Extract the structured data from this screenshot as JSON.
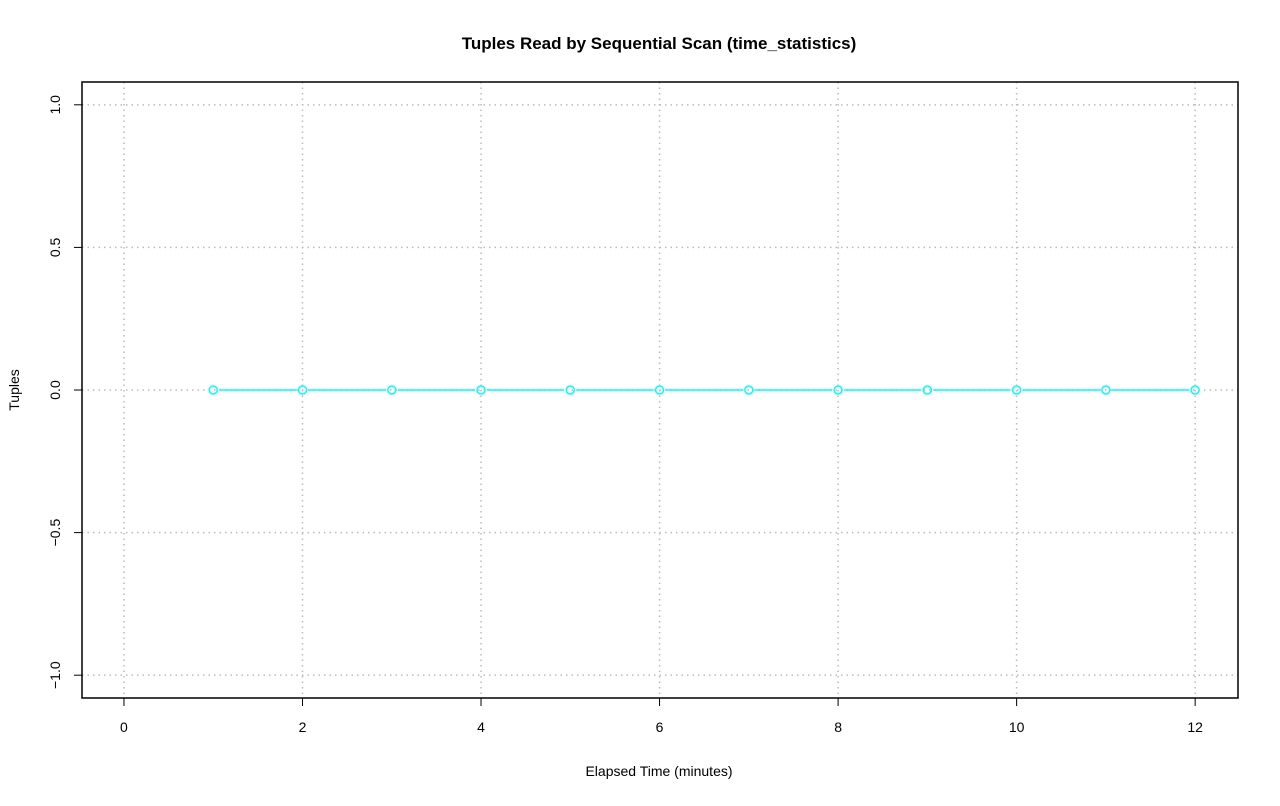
{
  "chart_data": {
    "type": "line",
    "title": "Tuples Read by Sequential Scan (time_statistics)",
    "xlabel": "Elapsed Time (minutes)",
    "ylabel": "Tuples",
    "xlim": [
      -0.47,
      12.48
    ],
    "ylim": [
      -1.08,
      1.08
    ],
    "xticks": [
      0,
      2,
      4,
      6,
      8,
      10,
      12
    ],
    "xtick_labels": [
      "0",
      "2",
      "4",
      "6",
      "8",
      "10",
      "12"
    ],
    "yticks": [
      -1.0,
      -0.5,
      0.0,
      0.5,
      1.0
    ],
    "ytick_labels": [
      "−1.0",
      "−0.5",
      "0.0",
      "0.5",
      "1.0"
    ],
    "grid": true,
    "series": [
      {
        "color": "#00ffff",
        "marker": "open-circle",
        "x": [
          1,
          2,
          3,
          4,
          5,
          6,
          7,
          8,
          9,
          10,
          11,
          12
        ],
        "y": [
          0,
          0,
          0,
          0,
          0,
          0,
          0,
          0,
          0,
          0,
          0,
          0
        ]
      }
    ]
  }
}
